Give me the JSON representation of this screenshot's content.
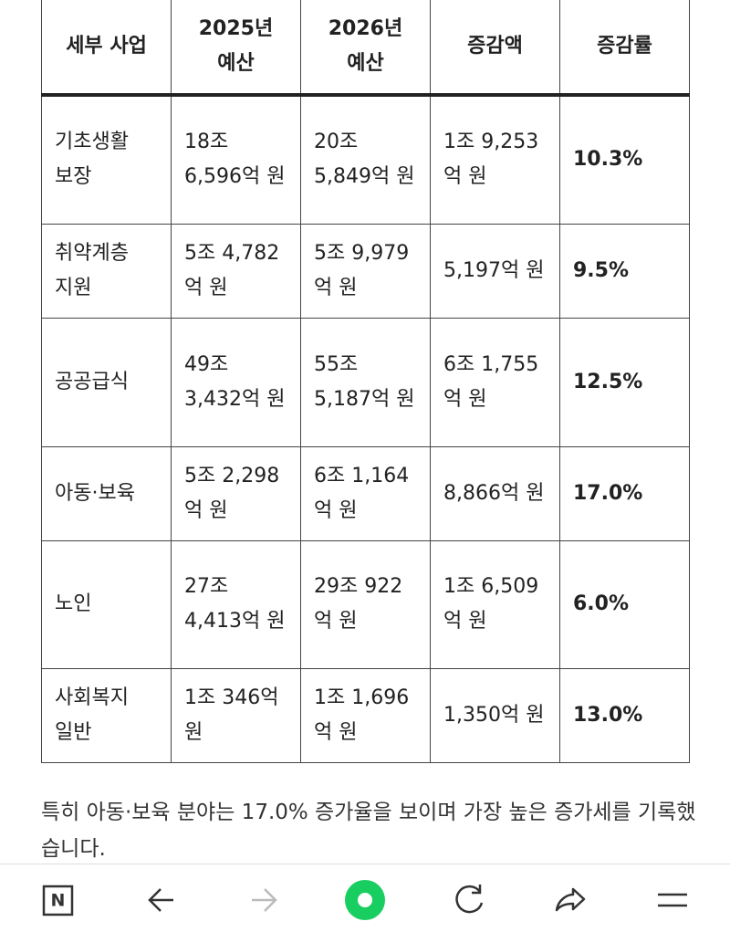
{
  "table": {
    "headers": [
      "세부 사업",
      "2025년 예산",
      "2026년 예산",
      "증감액",
      "증감률"
    ],
    "rows": [
      [
        "기초생활 보장",
        "18조 6,596억 원",
        "20조 5,849억 원",
        "1조 9,253 억 원",
        "10.3%"
      ],
      [
        "취약계층 지원",
        "5조 4,782 억 원",
        "5조 9,979 억 원",
        "5,197억 원",
        "9.5%"
      ],
      [
        "공공급식",
        "49조 3,432억 원",
        "55조 5,187억 원",
        "6조 1,755 억 원",
        "12.5%"
      ],
      [
        "아동·보육",
        "5조 2,298 억 원",
        "6조 1,164 억 원",
        "8,866억 원",
        "17.0%"
      ],
      [
        "노인",
        "27조 4,413억 원",
        "29조 922 억 원",
        "1조 6,509 억 원",
        "6.0%"
      ],
      [
        "사회복지 일반",
        "1조 346억 원",
        "1조 1,696 억 원",
        "1,350억 원",
        "13.0%"
      ]
    ]
  },
  "paragraph": "특히 아동·보육 분야는 17.0% 증가율을 보이며 가장 높은 증가세를 기록했습니다.",
  "nav": {
    "logo": "N"
  }
}
